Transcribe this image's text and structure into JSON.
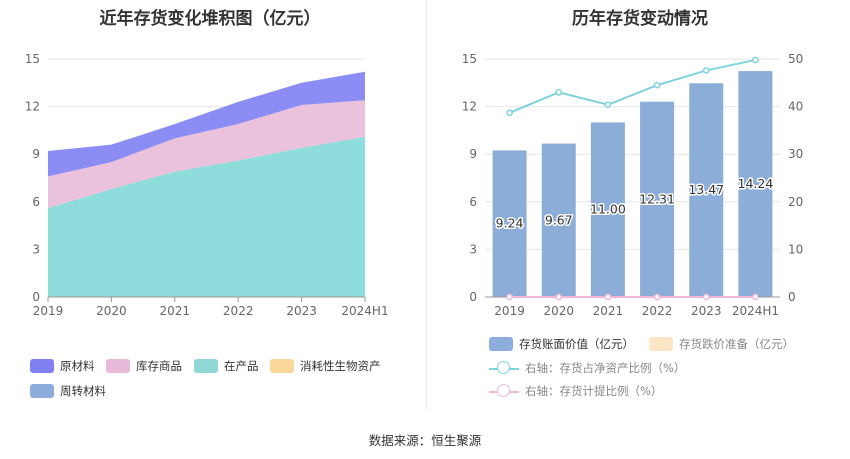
{
  "source_text": "数据来源：恒生聚源",
  "chart_data": [
    {
      "type": "area",
      "stacked": true,
      "title": "近年存货变化堆积图（亿元）",
      "categories": [
        "2019",
        "2020",
        "2021",
        "2022",
        "2023",
        "2024H1"
      ],
      "y_ticks": [
        "0",
        "3",
        "6",
        "9",
        "12",
        "15"
      ],
      "ylim": [
        0,
        15
      ],
      "series": [
        {
          "name": "在产品",
          "color": "#8fdcdc",
          "values": [
            5.6,
            6.8,
            7.9,
            8.6,
            9.4,
            10.1
          ]
        },
        {
          "name": "库存商品",
          "color": "#ebc2dc",
          "values": [
            2.0,
            1.7,
            2.1,
            2.3,
            2.7,
            2.3
          ]
        },
        {
          "name": "原材料",
          "color": "#8c8cf5",
          "values": [
            1.6,
            1.1,
            0.9,
            1.4,
            1.4,
            1.8
          ]
        }
      ],
      "legend": [
        {
          "name": "原材料",
          "color": "#8080f2"
        },
        {
          "name": "库存商品",
          "color": "#e8b9d8"
        },
        {
          "name": "在产品",
          "color": "#8fd7d7"
        },
        {
          "name": "消耗性生物资产",
          "color": "#fcd79a"
        },
        {
          "name": "周转材料",
          "color": "#8daedd"
        }
      ]
    },
    {
      "type": "bar+line",
      "title": "历年存货变动情况",
      "categories": [
        "2019",
        "2020",
        "2021",
        "2022",
        "2023",
        "2024H1"
      ],
      "y_left_ticks": [
        "0",
        "3",
        "6",
        "9",
        "12",
        "15"
      ],
      "y_right_ticks": [
        "0",
        "10",
        "20",
        "30",
        "40",
        "50"
      ],
      "ylim_left": [
        0,
        15
      ],
      "ylim_right": [
        0,
        50
      ],
      "bars": {
        "name": "存货账面价值（亿元）",
        "color": "#8dadd9",
        "values": [
          9.24,
          9.67,
          11.0,
          12.31,
          13.47,
          14.24
        ],
        "labels": [
          "9.24",
          "9.67",
          "11.00",
          "12.31",
          "13.47",
          "14.24"
        ]
      },
      "lines": [
        {
          "name": "右轴：存货占净资产比例（%）",
          "color": "#7fd3dc",
          "values": [
            38.7,
            43.0,
            40.4,
            44.5,
            47.6,
            49.8
          ]
        },
        {
          "name": "右轴：存货计提比例（%）",
          "color": "#f0b8d6",
          "values": [
            0,
            0,
            0,
            0,
            0,
            0
          ]
        }
      ],
      "legend": [
        {
          "name": "存货账面价值（亿元）",
          "kind": "swatch",
          "color": "#8daedd"
        },
        {
          "name": "存货跌价准备（亿元）",
          "kind": "swatch",
          "color": "#fde6c6"
        },
        {
          "name": "右轴：存货占净资产比例（%）",
          "kind": "line",
          "color": "#7fd3dc"
        },
        {
          "name": "右轴：存货计提比例（%）",
          "kind": "line",
          "color": "#f0b8d6"
        }
      ]
    }
  ]
}
